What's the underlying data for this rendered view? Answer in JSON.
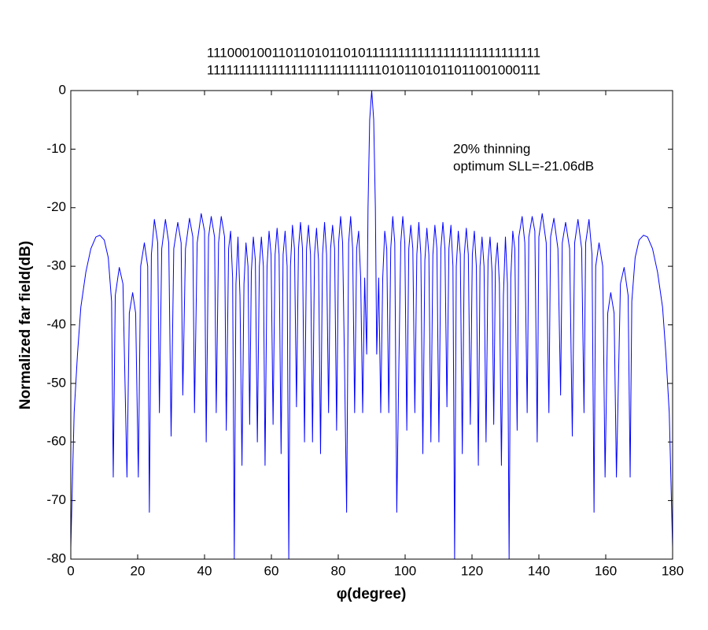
{
  "chart_data": {
    "type": "line",
    "title_lines": [
      "1110001001101101011010111111111111111111111111111",
      "1111111111111111111111111110101101011011001000111"
    ],
    "annotation_lines": [
      "20% thinning",
      "optimum SLL=-21.06dB"
    ],
    "x_label": "φ(degree)",
    "y_label": "Normalized far field(dB)",
    "color": "#0000ff",
    "xlim": [
      0,
      180
    ],
    "ylim": [
      -80,
      0
    ],
    "xticks": [
      0,
      20,
      40,
      60,
      80,
      100,
      120,
      140,
      160,
      180
    ],
    "yticks": [
      0,
      -10,
      -20,
      -30,
      -40,
      -50,
      -60,
      -70,
      -80
    ],
    "grid": false,
    "x": [
      0,
      1,
      2,
      3,
      4.5,
      6,
      7.5,
      8.7,
      10,
      11.2,
      12.2,
      12.7,
      13.3,
      14.5,
      15.6,
      16.8,
      17.5,
      18.5,
      19.4,
      20.2,
      20.9,
      22,
      23,
      23.5,
      24.1,
      25,
      26,
      26.5,
      27.2,
      28.3,
      29.3,
      30,
      30.8,
      32,
      33,
      33.5,
      34.3,
      35.5,
      36.5,
      37,
      37.8,
      39,
      40,
      40.5,
      41.2,
      42,
      43,
      43.5,
      44.2,
      45,
      46,
      46.5,
      47.2,
      47.8,
      48.4,
      48.9,
      49.4,
      50,
      50.6,
      51.2,
      51.8,
      52.4,
      53,
      53.5,
      54,
      54.6,
      55.2,
      55.8,
      56.4,
      57,
      57.6,
      58.1,
      58.7,
      59.3,
      59.9,
      60.5,
      61.1,
      61.7,
      62.3,
      62.9,
      63.5,
      64.1,
      64.7,
      65.2,
      65.7,
      66.3,
      66.9,
      67.5,
      68.1,
      68.7,
      69.3,
      69.9,
      70.5,
      71.1,
      71.7,
      72.3,
      72.9,
      73.5,
      74.1,
      74.7,
      75.3,
      75.9,
      76.5,
      77.1,
      77.7,
      78.3,
      78.9,
      79.5,
      80.1,
      80.7,
      81.3,
      81.9,
      82.5,
      83.1,
      83.7,
      84.3,
      84.9,
      85.5,
      86.1,
      86.7,
      87.3,
      87.9,
      88.5,
      88.9,
      89.4,
      90,
      90.6,
      91.1,
      91.5,
      92.1,
      92.7,
      93.3,
      93.9,
      94.5,
      95.1,
      95.7,
      96.3,
      96.9,
      97.5,
      98.1,
      98.7,
      99.3,
      99.9,
      100.5,
      101.1,
      101.7,
      102.3,
      102.9,
      103.5,
      104.1,
      104.7,
      105.3,
      105.9,
      106.5,
      107.1,
      107.7,
      108.3,
      108.9,
      109.5,
      110.1,
      110.7,
      111.3,
      111.9,
      112.5,
      113.1,
      113.7,
      114.3,
      114.8,
      115.3,
      115.9,
      116.5,
      117.1,
      117.7,
      118.3,
      118.9,
      119.5,
      120.1,
      120.7,
      121.3,
      121.9,
      122.4,
      123,
      123.6,
      124.2,
      124.8,
      125.4,
      126,
      126.5,
      127,
      127.6,
      128.2,
      128.8,
      129.4,
      130,
      130.6,
      131.1,
      131.6,
      132.2,
      132.8,
      133.5,
      134,
      135,
      135.8,
      136.5,
      137,
      138,
      138.8,
      139.5,
      140,
      141,
      142.2,
      143,
      143.5,
      144.5,
      145.7,
      146.5,
      147,
      148,
      149.2,
      150,
      150.7,
      151.7,
      152.8,
      153.5,
      154,
      155,
      155.9,
      156.5,
      157,
      158,
      159.1,
      159.8,
      160.6,
      161.5,
      162.5,
      163.2,
      164.4,
      165.5,
      166.7,
      167.3,
      167.8,
      168.8,
      170,
      171.3,
      172.5,
      174,
      175.5,
      177,
      178,
      179,
      180
    ],
    "values": [
      -78,
      -55,
      -45,
      -37,
      -31,
      -27,
      -25,
      -24.7,
      -25.5,
      -28.5,
      -36,
      -66,
      -35,
      -30.2,
      -33,
      -66,
      -38,
      -34.5,
      -38,
      -66,
      -30,
      -26,
      -30,
      -72,
      -28,
      -22,
      -26,
      -55,
      -27,
      -22,
      -26,
      -59,
      -27,
      -22.5,
      -26,
      -52,
      -27,
      -21.8,
      -25,
      -55,
      -26,
      -21,
      -24,
      -60,
      -25,
      -21.5,
      -25,
      -55,
      -26,
      -21.5,
      -25,
      -58,
      -27,
      -24,
      -32,
      -80,
      -33,
      -25,
      -35,
      -64,
      -33,
      -26,
      -30,
      -57,
      -31,
      -25,
      -29,
      -60,
      -30,
      -25,
      -30,
      -64,
      -30,
      -24,
      -28,
      -57,
      -28,
      -23.5,
      -28,
      -62,
      -28,
      -24,
      -30,
      -80,
      -30,
      -23,
      -27,
      -54,
      -27,
      -22.5,
      -27,
      -60,
      -27,
      -23,
      -28,
      -60,
      -28,
      -23.5,
      -29,
      -62,
      -28,
      -22.5,
      -28,
      -55,
      -27,
      -23,
      -27,
      -58,
      -26,
      -21.5,
      -26,
      -48,
      -72,
      -26,
      -21.5,
      -27,
      -55,
      -27,
      -24,
      -32,
      -55,
      -32,
      -45,
      -20,
      -5,
      0,
      -5,
      -20,
      -45,
      -32,
      -55,
      -32,
      -24,
      -27,
      -55,
      -27,
      -21.5,
      -26,
      -72,
      -48,
      -26,
      -21.5,
      -26,
      -58,
      -27,
      -23,
      -27,
      -55,
      -28,
      -22.5,
      -28,
      -62,
      -29,
      -23.5,
      -28,
      -60,
      -28,
      -23,
      -27,
      -60,
      -27,
      -22.5,
      -27,
      -54,
      -27,
      -23,
      -30,
      -80,
      -30,
      -24,
      -28,
      -62,
      -28,
      -23.5,
      -28,
      -57,
      -28,
      -24,
      -30,
      -64,
      -30,
      -25,
      -30,
      -60,
      -29,
      -25,
      -31,
      -57,
      -30,
      -26,
      -33,
      -64,
      -35,
      -25,
      -33,
      -80,
      -32,
      -24,
      -27,
      -58,
      -25,
      -21.5,
      -26,
      -55,
      -25,
      -21.5,
      -24,
      -60,
      -25,
      -21,
      -26,
      -55,
      -25,
      -21.8,
      -27,
      -52,
      -26,
      -22.5,
      -27,
      -59,
      -26,
      -22,
      -27,
      -55,
      -26,
      -22,
      -28,
      -72,
      -30,
      -26,
      -30,
      -66,
      -38,
      -34.5,
      -38,
      -66,
      -33,
      -30.2,
      -35,
      -66,
      -36,
      -28.5,
      -25.5,
      -24.7,
      -25,
      -27,
      -31,
      -37,
      -45,
      -55,
      -78
    ]
  }
}
